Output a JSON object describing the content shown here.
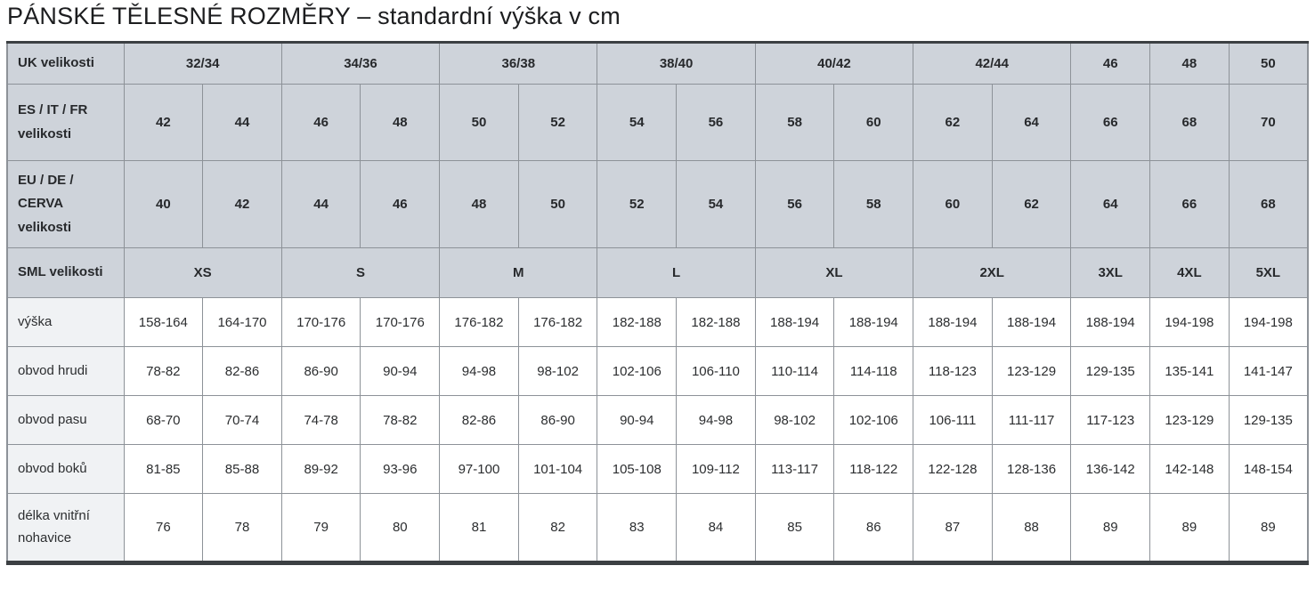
{
  "title": "PÁNSKÉ TĚLESNÉ ROZMĚRY – standardní výška v cm",
  "colors": {
    "header_bg": "#ced3da",
    "label_bg": "#f0f2f4",
    "grid_border": "#8d9298",
    "outer_border": "#3c4043",
    "text": "#2c2e30"
  },
  "table": {
    "header_rows": [
      {
        "label": "UK velikosti",
        "cells": [
          {
            "text": "32/34",
            "span": 2
          },
          {
            "text": "34/36",
            "span": 2
          },
          {
            "text": "36/38",
            "span": 2
          },
          {
            "text": "38/40",
            "span": 2
          },
          {
            "text": "40/42",
            "span": 2
          },
          {
            "text": "42/44",
            "span": 2
          },
          {
            "text": "46",
            "span": 1
          },
          {
            "text": "48",
            "span": 1
          },
          {
            "text": "50",
            "span": 1
          }
        ]
      },
      {
        "label": "ES / IT / FR velikosti",
        "cells": [
          {
            "text": "42",
            "span": 1
          },
          {
            "text": "44",
            "span": 1
          },
          {
            "text": "46",
            "span": 1
          },
          {
            "text": "48",
            "span": 1
          },
          {
            "text": "50",
            "span": 1
          },
          {
            "text": "52",
            "span": 1
          },
          {
            "text": "54",
            "span": 1
          },
          {
            "text": "56",
            "span": 1
          },
          {
            "text": "58",
            "span": 1
          },
          {
            "text": "60",
            "span": 1
          },
          {
            "text": "62",
            "span": 1
          },
          {
            "text": "64",
            "span": 1
          },
          {
            "text": "66",
            "span": 1
          },
          {
            "text": "68",
            "span": 1
          },
          {
            "text": "70",
            "span": 1
          }
        ]
      },
      {
        "label": "EU / DE / CERVA velikosti",
        "cells": [
          {
            "text": "40",
            "span": 1
          },
          {
            "text": "42",
            "span": 1
          },
          {
            "text": "44",
            "span": 1
          },
          {
            "text": "46",
            "span": 1
          },
          {
            "text": "48",
            "span": 1
          },
          {
            "text": "50",
            "span": 1
          },
          {
            "text": "52",
            "span": 1
          },
          {
            "text": "54",
            "span": 1
          },
          {
            "text": "56",
            "span": 1
          },
          {
            "text": "58",
            "span": 1
          },
          {
            "text": "60",
            "span": 1
          },
          {
            "text": "62",
            "span": 1
          },
          {
            "text": "64",
            "span": 1
          },
          {
            "text": "66",
            "span": 1
          },
          {
            "text": "68",
            "span": 1
          }
        ]
      },
      {
        "label": "SML velikosti",
        "cells": [
          {
            "text": "XS",
            "span": 2
          },
          {
            "text": "S",
            "span": 2
          },
          {
            "text": "M",
            "span": 2
          },
          {
            "text": "L",
            "span": 2
          },
          {
            "text": "XL",
            "span": 2
          },
          {
            "text": "2XL",
            "span": 2
          },
          {
            "text": "3XL",
            "span": 1
          },
          {
            "text": "4XL",
            "span": 1
          },
          {
            "text": "5XL",
            "span": 1
          }
        ]
      }
    ],
    "data_rows": [
      {
        "label": "výška",
        "values": [
          "158-164",
          "164-170",
          "170-176",
          "170-176",
          "176-182",
          "176-182",
          "182-188",
          "182-188",
          "188-194",
          "188-194",
          "188-194",
          "188-194",
          "188-194",
          "194-198",
          "194-198"
        ]
      },
      {
        "label": "obvod hrudi",
        "values": [
          "78-82",
          "82-86",
          "86-90",
          "90-94",
          "94-98",
          "98-102",
          "102-106",
          "106-110",
          "110-114",
          "114-118",
          "118-123",
          "123-129",
          "129-135",
          "135-141",
          "141-147"
        ]
      },
      {
        "label": "obvod pasu",
        "values": [
          "68-70",
          "70-74",
          "74-78",
          "78-82",
          "82-86",
          "86-90",
          "90-94",
          "94-98",
          "98-102",
          "102-106",
          "106-111",
          "111-117",
          "117-123",
          "123-129",
          "129-135"
        ]
      },
      {
        "label": "obvod boků",
        "values": [
          "81-85",
          "85-88",
          "89-92",
          "93-96",
          "97-100",
          "101-104",
          "105-108",
          "109-112",
          "113-117",
          "118-122",
          "122-128",
          "128-136",
          "136-142",
          "142-148",
          "148-154"
        ]
      },
      {
        "label": "délka vnitřní nohavice",
        "values": [
          "76",
          "78",
          "79",
          "80",
          "81",
          "82",
          "83",
          "84",
          "85",
          "86",
          "87",
          "88",
          "89",
          "89",
          "89"
        ]
      }
    ]
  }
}
